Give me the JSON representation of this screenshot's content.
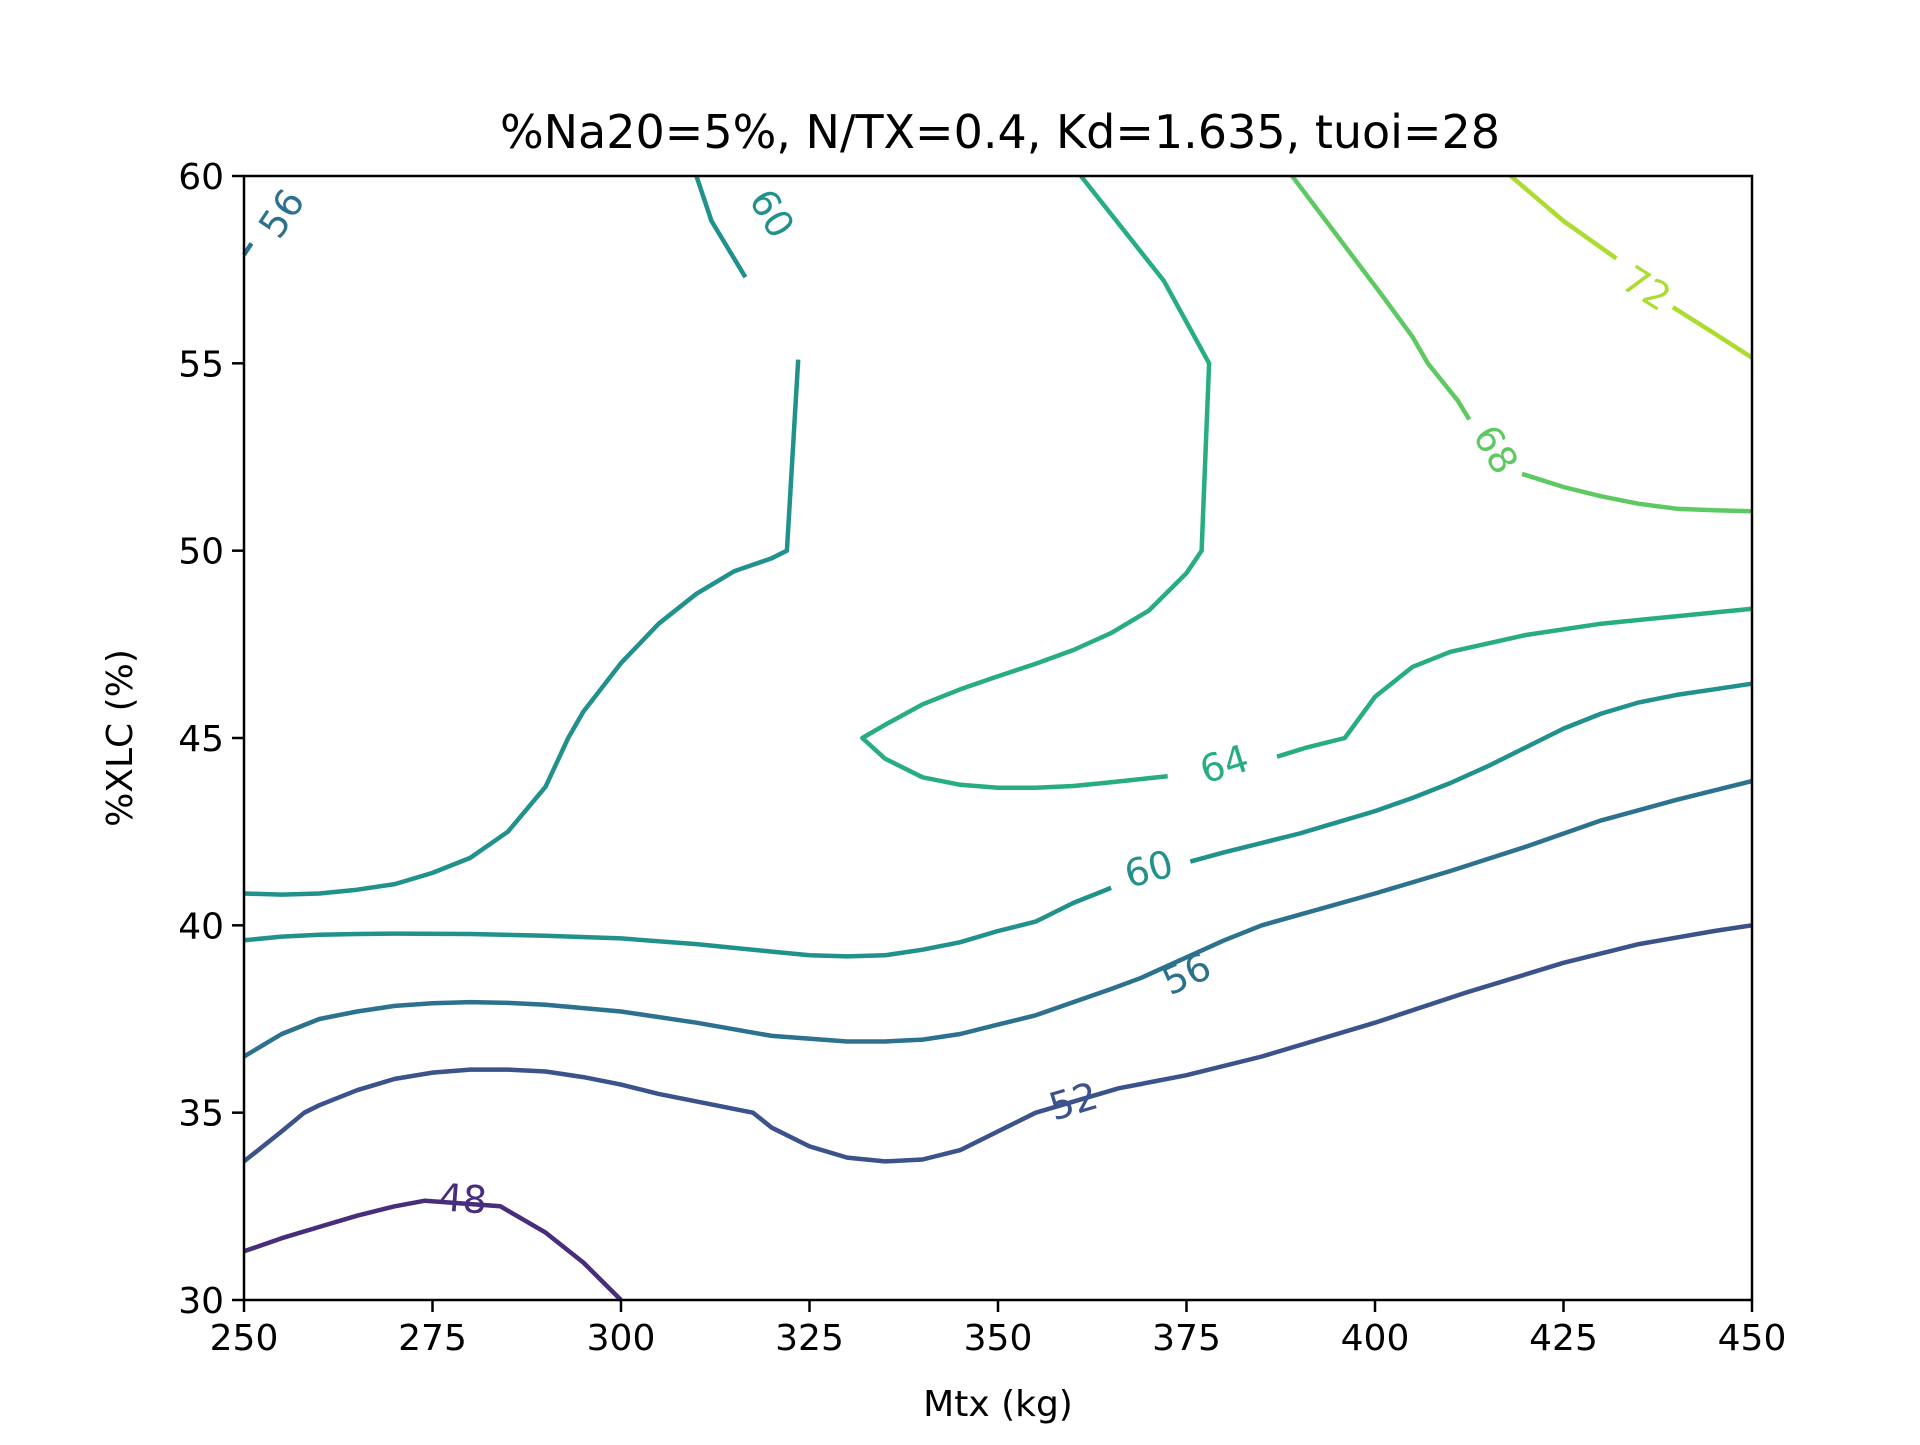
{
  "chart_data": {
    "type": "contour",
    "title": "%Na20=5%, N/TX=0.4, Kd=1.635, tuoi=28",
    "xlabel": "Mtx (kg)",
    "ylabel": "%XLC (%)",
    "xlim": [
      250,
      450
    ],
    "ylim": [
      30,
      60
    ],
    "xticks": [
      "250",
      "275",
      "300",
      "325",
      "350",
      "375",
      "400",
      "425",
      "450"
    ],
    "yticks": [
      "30",
      "35",
      "40",
      "45",
      "50",
      "55",
      "60"
    ],
    "grid": false,
    "legend": "none",
    "levels": [
      {
        "level": 48,
        "label": "48",
        "color": "#472d7b",
        "labels_at": [
          [
            279,
            32.7
          ]
        ],
        "paths": [
          [
            [
              250,
              31.3
            ],
            [
              255,
              31.65
            ],
            [
              260,
              31.95
            ],
            [
              265,
              32.25
            ],
            [
              270,
              32.5
            ],
            [
              274,
              32.65
            ],
            [
              284,
              32.5
            ],
            [
              290,
              31.8
            ],
            [
              295,
              31.0
            ],
            [
              300,
              30.0
            ]
          ]
        ]
      },
      {
        "level": 52,
        "label": "52",
        "color": "#3b528b",
        "labels_at": [
          [
            360,
            35.3
          ]
        ],
        "paths": [
          [
            [
              250,
              33.7
            ],
            [
              255,
              34.5
            ],
            [
              258,
              35.0
            ],
            [
              260,
              35.2
            ],
            [
              265,
              35.6
            ],
            [
              270,
              35.9
            ],
            [
              275,
              36.07
            ],
            [
              280,
              36.15
            ],
            [
              285,
              36.15
            ],
            [
              290,
              36.1
            ],
            [
              295,
              35.95
            ],
            [
              300,
              35.75
            ],
            [
              305,
              35.5
            ],
            [
              310,
              35.3
            ],
            [
              315,
              35.1
            ],
            [
              317.5,
              35.0
            ],
            [
              320,
              34.6
            ],
            [
              325,
              34.1
            ],
            [
              330,
              33.8
            ],
            [
              335,
              33.7
            ],
            [
              340,
              33.75
            ],
            [
              345,
              34.0
            ],
            [
              350,
              34.5
            ],
            [
              355,
              35.0
            ],
            [
              366,
              35.65
            ],
            [
              375,
              36.0
            ],
            [
              385,
              36.5
            ],
            [
              400,
              37.4
            ],
            [
              412,
              38.2
            ],
            [
              425,
              39.0
            ],
            [
              435,
              39.5
            ],
            [
              445,
              39.85
            ],
            [
              450,
              40.0
            ]
          ]
        ]
      },
      {
        "level": 56,
        "label": "56",
        "color": "#2c728e",
        "labels_at": [
          [
            375,
            38.7
          ],
          [
            255,
            59.0
          ]
        ],
        "paths": [
          [
            [
              250,
              36.5
            ],
            [
              255,
              37.1
            ],
            [
              260,
              37.5
            ],
            [
              265,
              37.7
            ],
            [
              270,
              37.85
            ],
            [
              275,
              37.92
            ],
            [
              280,
              37.95
            ],
            [
              285,
              37.93
            ],
            [
              290,
              37.88
            ],
            [
              300,
              37.7
            ],
            [
              310,
              37.4
            ],
            [
              320,
              37.05
            ],
            [
              330,
              36.9
            ],
            [
              335,
              36.9
            ],
            [
              340,
              36.95
            ],
            [
              345,
              37.1
            ],
            [
              350,
              37.35
            ],
            [
              355,
              37.6
            ],
            [
              360,
              37.95
            ],
            [
              365,
              38.3
            ],
            [
              369,
              38.6
            ],
            [
              380,
              39.6
            ],
            [
              385,
              40.0
            ],
            [
              400,
              40.85
            ],
            [
              410,
              41.45
            ],
            [
              420,
              42.1
            ],
            [
              430,
              42.8
            ],
            [
              440,
              43.35
            ],
            [
              450,
              43.85
            ]
          ],
          [
            [
              250,
              57.9
            ],
            [
              251,
              58.2
            ]
          ]
        ]
      },
      {
        "level": 60,
        "label": "60",
        "color": "#21918c",
        "labels_at": [
          [
            370,
            41.5
          ],
          [
            320,
            59.0
          ]
        ],
        "paths": [
          [
            [
              250,
              39.6
            ],
            [
              255,
              39.7
            ],
            [
              260,
              39.75
            ],
            [
              265,
              39.77
            ],
            [
              270,
              39.78
            ],
            [
              280,
              39.77
            ],
            [
              290,
              39.72
            ],
            [
              300,
              39.65
            ],
            [
              310,
              39.5
            ],
            [
              320,
              39.3
            ],
            [
              325,
              39.2
            ],
            [
              330,
              39.17
            ],
            [
              335,
              39.2
            ],
            [
              340,
              39.35
            ],
            [
              345,
              39.55
            ],
            [
              350,
              39.85
            ],
            [
              355,
              40.1
            ],
            [
              360,
              40.6
            ],
            [
              365,
              41.0
            ]
          ],
          [
            [
              375.5,
              41.7
            ],
            [
              380,
              41.95
            ],
            [
              385,
              42.2
            ],
            [
              390,
              42.45
            ],
            [
              395,
              42.75
            ],
            [
              400,
              43.05
            ],
            [
              405,
              43.4
            ],
            [
              410,
              43.8
            ],
            [
              415,
              44.25
            ],
            [
              420,
              44.75
            ],
            [
              425,
              45.25
            ],
            [
              430,
              45.65
            ],
            [
              435,
              45.95
            ],
            [
              440,
              46.15
            ],
            [
              445,
              46.3
            ],
            [
              450,
              46.45
            ]
          ],
          [
            [
              250,
              40.85
            ],
            [
              255,
              40.82
            ],
            [
              260,
              40.85
            ],
            [
              265,
              40.95
            ],
            [
              270,
              41.1
            ],
            [
              275,
              41.4
            ],
            [
              280,
              41.8
            ],
            [
              285,
              42.5
            ],
            [
              290,
              43.7
            ],
            [
              293,
              45.0
            ],
            [
              295,
              45.7
            ],
            [
              300,
              47.0
            ],
            [
              305,
              48.05
            ],
            [
              310,
              48.85
            ],
            [
              315,
              49.45
            ],
            [
              320,
              49.8
            ],
            [
              322,
              50.0
            ],
            [
              323.5,
              55.1
            ]
          ],
          [
            [
              316.5,
              57.3
            ],
            [
              312,
              58.8
            ],
            [
              310,
              60.0
            ]
          ]
        ]
      },
      {
        "level": 64,
        "label": "64",
        "color": "#27ad81",
        "labels_at": [
          [
            380,
            44.3
          ]
        ],
        "paths": [
          [
            [
              387,
              44.5
            ],
            [
              391,
              44.75
            ],
            [
              396,
              45.0
            ],
            [
              400,
              46.1
            ],
            [
              405,
              46.9
            ],
            [
              410,
              47.3
            ],
            [
              420,
              47.75
            ],
            [
              430,
              48.05
            ],
            [
              440,
              48.25
            ],
            [
              450,
              48.45
            ]
          ],
          [
            [
              372.5,
              43.98
            ],
            [
              365,
              43.82
            ],
            [
              360,
              43.72
            ],
            [
              355,
              43.67
            ],
            [
              350,
              43.67
            ],
            [
              345,
              43.75
            ],
            [
              340,
              43.95
            ],
            [
              335,
              44.45
            ],
            [
              332,
              45.0
            ],
            [
              335,
              45.35
            ],
            [
              340,
              45.9
            ],
            [
              345,
              46.3
            ],
            [
              350,
              46.65
            ],
            [
              355,
              46.98
            ],
            [
              360,
              47.35
            ],
            [
              365,
              47.8
            ],
            [
              370,
              48.4
            ],
            [
              375,
              49.4
            ],
            [
              377,
              50.0
            ],
            [
              378,
              55.0
            ],
            [
              372,
              57.2
            ],
            [
              361,
              60.0
            ]
          ]
        ]
      },
      {
        "level": 68,
        "label": "68",
        "color": "#5ec962",
        "labels_at": [
          [
            416,
            52.7
          ]
        ],
        "paths": [
          [
            [
              389,
              60.0
            ],
            [
              395,
              58.4
            ],
            [
              401,
              56.8
            ],
            [
              405,
              55.7
            ],
            [
              407,
              55.0
            ],
            [
              411,
              54.0
            ],
            [
              412.5,
              53.5
            ]
          ],
          [
            [
              419.5,
              52.05
            ],
            [
              425,
              51.7
            ],
            [
              430,
              51.45
            ],
            [
              435,
              51.25
            ],
            [
              440,
              51.12
            ],
            [
              445,
              51.08
            ],
            [
              450,
              51.05
            ]
          ]
        ]
      },
      {
        "level": 72,
        "label": "72",
        "color": "#addc30",
        "labels_at": [
          [
            436,
            57.0
          ]
        ],
        "paths": [
          [
            [
              418,
              60.0
            ],
            [
              425,
              58.8
            ],
            [
              432,
              57.8
            ]
          ],
          [
            [
              439.5,
              56.5
            ],
            [
              445,
              55.8
            ],
            [
              450,
              55.15
            ]
          ]
        ]
      }
    ]
  }
}
